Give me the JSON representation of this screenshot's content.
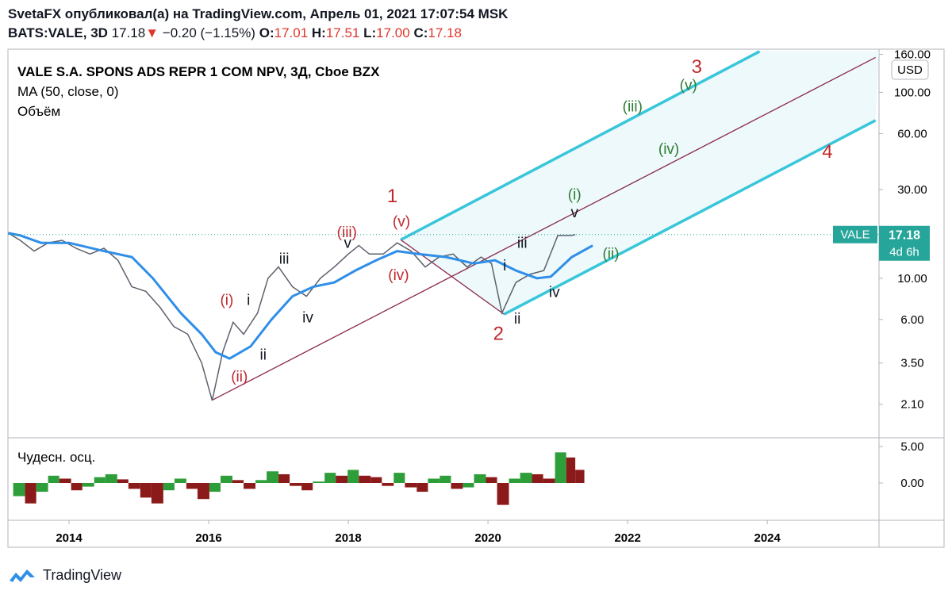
{
  "header": {
    "line1": "SvetaFX опубликовал(а) на TradingView.com, Апрель 01, 2021 17:07:54 MSK",
    "symbol": "BATS:VALE, 3D",
    "price": "17.18",
    "arrow": "▼",
    "change": "−0.20 (−1.15%)",
    "o_label": "O:",
    "o": "17.01",
    "h_label": "H:",
    "h": "17.51",
    "l_label": "L:",
    "l": "17.00",
    "c_label": "C:",
    "c": "17.18"
  },
  "footer": {
    "brand": "TradingView"
  },
  "chart_data": [
    {
      "type": "line",
      "title": "VALE S.A. SPONS ADS REPR 1 COM NPV, 3Д, Cboe BZX",
      "volume_label": "Объём",
      "currency": "USD",
      "log_scale": true,
      "countdown": "4d 6h",
      "last_price": 17.18,
      "last_color": "#26a69a",
      "xlim": [
        2013.125,
        2025.6
      ],
      "xticks": [
        2014,
        2016,
        2018,
        2020,
        2022,
        2024
      ],
      "ylim": [
        1.4,
        169
      ],
      "yticks": [
        {
          "value": 160,
          "label": "160.00"
        },
        {
          "value": 100,
          "label": "100.00"
        },
        {
          "value": 60,
          "label": "60.00"
        },
        {
          "value": 30,
          "label": "30.00"
        },
        {
          "value": 10,
          "label": "10.00"
        },
        {
          "value": 6,
          "label": "6.00"
        },
        {
          "value": 3.5,
          "label": "3.50"
        },
        {
          "value": 2.1,
          "label": "2.10"
        }
      ],
      "series": [
        {
          "name": "VALE",
          "color": "#5d606b",
          "x": [
            2013.13,
            2013.3,
            2013.5,
            2013.7,
            2013.9,
            2014.1,
            2014.3,
            2014.5,
            2014.7,
            2014.9,
            2015.1,
            2015.3,
            2015.5,
            2015.7,
            2015.9,
            2016.05,
            2016.2,
            2016.35,
            2016.5,
            2016.7,
            2016.85,
            2017.0,
            2017.2,
            2017.4,
            2017.6,
            2017.8,
            2018.0,
            2018.15,
            2018.3,
            2018.5,
            2018.7,
            2018.9,
            2019.1,
            2019.3,
            2019.5,
            2019.7,
            2019.9,
            2020.05,
            2020.2,
            2020.4,
            2020.6,
            2020.8,
            2021.0,
            2021.2,
            2021.25
          ],
          "values": [
            17.5,
            16,
            14,
            15.5,
            16,
            14.5,
            13.5,
            14.5,
            12.5,
            9,
            8.5,
            7,
            5.5,
            5,
            3.5,
            2.2,
            4,
            5.8,
            5,
            6.5,
            10,
            11.5,
            9,
            8,
            10,
            11.5,
            13.5,
            15,
            13.5,
            13.5,
            15.5,
            14,
            11.5,
            13,
            13.5,
            11.5,
            13,
            12,
            6.5,
            9.5,
            10.5,
            11,
            17,
            17,
            17.18
          ]
        },
        {
          "name": "MA (50, close, 0)",
          "color": "#2f8ee8",
          "x": [
            2013.13,
            2013.3,
            2013.6,
            2014.0,
            2014.5,
            2014.9,
            2015.2,
            2015.6,
            2015.9,
            2016.1,
            2016.3,
            2016.6,
            2016.9,
            2017.2,
            2017.5,
            2017.8,
            2018.1,
            2018.4,
            2018.7,
            2019.0,
            2019.4,
            2019.8,
            2020.1,
            2020.4,
            2020.7,
            2020.9,
            2021.2,
            2021.5
          ],
          "values": [
            17.5,
            17,
            15.5,
            15.5,
            14,
            13,
            10,
            6.5,
            5,
            4,
            3.7,
            4.3,
            6,
            8,
            9,
            9.5,
            11,
            12.5,
            14,
            13.5,
            13,
            12,
            12.5,
            11,
            10,
            10.2,
            13,
            15
          ]
        }
      ],
      "drawings": [
        {
          "color": "#38c6da",
          "x": [
            2018.75,
            2023.89
          ],
          "y": [
            16.1,
            166
          ]
        },
        {
          "color": "#38c6da",
          "x": [
            2020.23,
            2025.55
          ],
          "y": [
            6.4,
            70.6
          ]
        },
        {
          "color": "#8b2a4e",
          "x": [
            2016.05,
            2025.55
          ],
          "y": [
            2.21,
            154
          ]
        },
        {
          "color": "#8b2a4e",
          "x": [
            2018.75,
            2020.23
          ],
          "y": [
            16.1,
            6.4
          ]
        }
      ],
      "annotations": [
        {
          "text": "3",
          "color": "#c0282d",
          "x": 2022.99,
          "y": 136
        },
        {
          "text": "(v)",
          "color": "#2e7d32",
          "x": 2022.87,
          "y": 110
        },
        {
          "text": "(iii)",
          "color": "#2e7d32",
          "x": 2022.07,
          "y": 84.5
        },
        {
          "text": "(iv)",
          "color": "#2e7d32",
          "x": 2022.59,
          "y": 49.9
        },
        {
          "text": "4",
          "color": "#c0282d",
          "x": 2024.86,
          "y": 47.5
        },
        {
          "text": "(i)",
          "color": "#2e7d32",
          "x": 2021.24,
          "y": 28.4
        },
        {
          "text": "v",
          "color": "#131722",
          "x": 2021.24,
          "y": 22.8
        },
        {
          "text": "(ii)",
          "color": "#2e7d32",
          "x": 2021.76,
          "y": 13.7
        },
        {
          "text": "1",
          "color": "#c0282d",
          "x": 2018.63,
          "y": 27.5
        },
        {
          "text": "(v)",
          "color": "#c0282d",
          "x": 2018.76,
          "y": 20.4
        },
        {
          "text": "(iii)",
          "color": "#c0282d",
          "x": 2017.98,
          "y": 17.8
        },
        {
          "text": "v",
          "color": "#131722",
          "x": 2017.99,
          "y": 15.6
        },
        {
          "text": "(iv)",
          "color": "#c0282d",
          "x": 2018.72,
          "y": 10.5
        },
        {
          "text": "iii",
          "color": "#131722",
          "x": 2020.49,
          "y": 15.6
        },
        {
          "text": "i",
          "color": "#131722",
          "x": 2020.24,
          "y": 11.8
        },
        {
          "text": "iv",
          "color": "#131722",
          "x": 2020.95,
          "y": 8.5
        },
        {
          "text": "ii",
          "color": "#131722",
          "x": 2020.42,
          "y": 6.1
        },
        {
          "text": "2",
          "color": "#c0282d",
          "x": 2020.15,
          "y": 5.0
        },
        {
          "text": "iii",
          "color": "#131722",
          "x": 2017.08,
          "y": 12.8
        },
        {
          "text": "iv",
          "color": "#131722",
          "x": 2017.42,
          "y": 6.2
        },
        {
          "text": "(i)",
          "color": "#c0282d",
          "x": 2016.26,
          "y": 7.7
        },
        {
          "text": "i",
          "color": "#131722",
          "x": 2016.57,
          "y": 7.7
        },
        {
          "text": "ii",
          "color": "#131722",
          "x": 2016.78,
          "y": 3.9
        },
        {
          "text": "(ii)",
          "color": "#c0282d",
          "x": 2016.44,
          "y": 2.98
        }
      ]
    },
    {
      "type": "bar",
      "title": "Чудесн. осц.",
      "up_color": "#2e9e3a",
      "down_color": "#8b1a1a",
      "xlim": [
        2013.125,
        2025.6
      ],
      "ylim": [
        -5,
        5.87
      ],
      "yticks": [
        {
          "value": 5,
          "label": "5.00"
        },
        {
          "value": 0,
          "label": "0.00"
        }
      ],
      "x": [
        2013.2,
        2013.37,
        2013.53,
        2013.7,
        2013.86,
        2014.03,
        2014.19,
        2014.36,
        2014.52,
        2014.69,
        2014.85,
        2015.02,
        2015.18,
        2015.35,
        2015.51,
        2015.68,
        2015.84,
        2016.01,
        2016.17,
        2016.34,
        2016.5,
        2016.67,
        2016.83,
        2017.0,
        2017.16,
        2017.33,
        2017.49,
        2017.66,
        2017.82,
        2017.99,
        2018.15,
        2018.32,
        2018.48,
        2018.65,
        2018.81,
        2018.98,
        2019.14,
        2019.31,
        2019.47,
        2019.64,
        2019.8,
        2019.97,
        2020.13,
        2020.3,
        2020.46,
        2020.63,
        2020.79,
        2020.96,
        2021.12,
        2021.25
      ],
      "values": [
        -1.8,
        -2.8,
        -1.2,
        1.0,
        0.6,
        -1.0,
        -0.5,
        0.8,
        1.2,
        0.5,
        -0.8,
        -2.0,
        -2.8,
        -1.0,
        0.6,
        -0.8,
        -2.2,
        -1.2,
        1.0,
        0.4,
        -0.8,
        0.4,
        1.6,
        1.2,
        -0.4,
        -1.0,
        0.2,
        1.4,
        1.0,
        1.8,
        1.0,
        0.8,
        -0.4,
        1.4,
        -0.6,
        -1.2,
        0.6,
        1.0,
        -0.8,
        -0.6,
        1.2,
        0.8,
        -3.0,
        0.6,
        1.4,
        1.2,
        0.6,
        4.2,
        3.5,
        1.8
      ]
    }
  ]
}
